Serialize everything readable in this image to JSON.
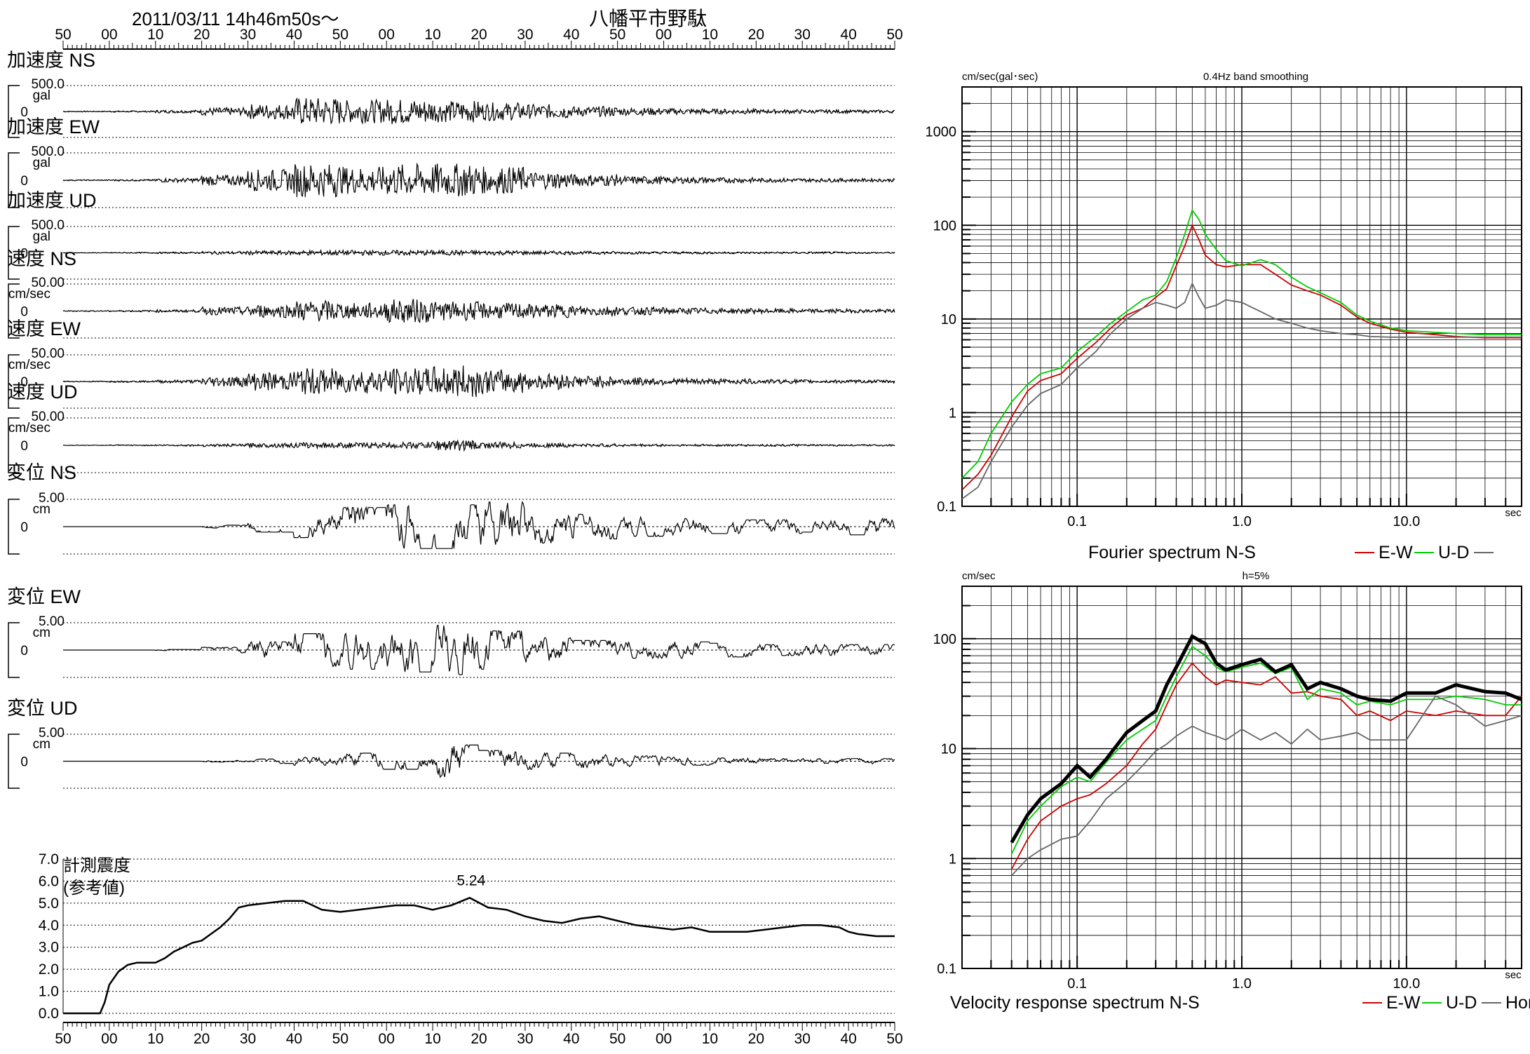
{
  "header": {
    "datetime": "2011/03/11  14h46m50s〜",
    "station": "八幡平市野駄"
  },
  "time_ticks": [
    "50",
    "00",
    "10",
    "20",
    "30",
    "40",
    "50",
    "00",
    "10",
    "20",
    "30",
    "40",
    "50",
    "00",
    "10",
    "20",
    "30",
    "40",
    "50"
  ],
  "chart_data": [
    {
      "type": "line",
      "id": "waveforms",
      "x_ticks": [
        "50",
        "00",
        "10",
        "20",
        "30",
        "40",
        "50",
        "00",
        "10",
        "20",
        "30",
        "40",
        "50",
        "00",
        "10",
        "20",
        "30",
        "40",
        "50"
      ],
      "series": [
        {
          "name": "加速度 NS",
          "label": "加速度 NS",
          "max_label": "500.0",
          "unit": "gal",
          "zero_label": "0",
          "peak_frac": 0.6,
          "envelope": [
            0.02,
            0.03,
            0.06,
            0.15,
            0.3,
            0.55,
            0.45,
            0.5,
            0.42,
            0.35,
            0.28,
            0.2,
            0.15,
            0.12,
            0.1,
            0.08,
            0.07,
            0.06
          ]
        },
        {
          "name": "加速度 EW",
          "label": "加速度 EW",
          "max_label": "500.0",
          "unit": "gal",
          "zero_label": "0",
          "peak_frac": 0.62,
          "envelope": [
            0.02,
            0.03,
            0.08,
            0.2,
            0.4,
            0.62,
            0.5,
            0.6,
            0.62,
            0.5,
            0.32,
            0.22,
            0.15,
            0.12,
            0.1,
            0.08,
            0.07,
            0.06
          ]
        },
        {
          "name": "加速度 UD",
          "label": "加速度 UD",
          "max_label": "500.0",
          "unit": "gal",
          "zero_label": "0",
          "peak_frac": 0.2,
          "envelope": [
            0.01,
            0.02,
            0.03,
            0.06,
            0.08,
            0.1,
            0.1,
            0.1,
            0.1,
            0.09,
            0.07,
            0.06,
            0.05,
            0.05,
            0.04,
            0.04,
            0.04,
            0.03
          ]
        },
        {
          "name": "速度 NS",
          "label": "速度 NS",
          "max_label": "50.00",
          "unit": "cm/sec",
          "zero_label": "0",
          "peak_frac": 0.5,
          "envelope": [
            0.02,
            0.03,
            0.05,
            0.15,
            0.25,
            0.4,
            0.3,
            0.45,
            0.35,
            0.3,
            0.25,
            0.2,
            0.15,
            0.12,
            0.1,
            0.09,
            0.08,
            0.07
          ]
        },
        {
          "name": "速度 EW",
          "label": "速度 EW",
          "max_label": "50.00",
          "unit": "cm/sec",
          "zero_label": "0",
          "peak_frac": 0.6,
          "envelope": [
            0.02,
            0.03,
            0.06,
            0.2,
            0.35,
            0.5,
            0.45,
            0.5,
            0.6,
            0.45,
            0.3,
            0.22,
            0.15,
            0.12,
            0.1,
            0.08,
            0.07,
            0.06
          ]
        },
        {
          "name": "速度 UD",
          "label": "速度 UD",
          "max_label": "50.00",
          "unit": "cm/sec",
          "zero_label": "0",
          "peak_frac": 0.3,
          "envelope": [
            0.01,
            0.02,
            0.03,
            0.05,
            0.08,
            0.1,
            0.1,
            0.12,
            0.2,
            0.12,
            0.08,
            0.06,
            0.05,
            0.04,
            0.04,
            0.04,
            0.03,
            0.03
          ]
        },
        {
          "name": "変位 NS",
          "label": "変位 NS",
          "max_label": "5.00",
          "unit": "cm",
          "zero_label": "0",
          "peak_frac": 1.0,
          "envelope": [
            0.0,
            0.0,
            0.0,
            0.05,
            0.2,
            0.4,
            0.7,
            0.8,
            0.8,
            0.9,
            0.6,
            0.45,
            0.35,
            0.3,
            0.25,
            0.25,
            0.2,
            0.3
          ]
        },
        {
          "name": "変位 EW",
          "label": "変位 EW",
          "max_label": "5.00",
          "unit": "cm",
          "zero_label": "0",
          "peak_frac": 1.0,
          "envelope": [
            0.0,
            0.0,
            0.02,
            0.1,
            0.3,
            0.6,
            0.7,
            0.8,
            0.9,
            0.7,
            0.45,
            0.35,
            0.3,
            0.3,
            0.25,
            0.2,
            0.2,
            0.2
          ]
        },
        {
          "name": "変位 UD",
          "label": "変位 UD",
          "max_label": "5.00",
          "unit": "cm",
          "zero_label": "0",
          "peak_frac": 0.9,
          "envelope": [
            0.0,
            0.0,
            0.0,
            0.03,
            0.08,
            0.15,
            0.3,
            0.3,
            0.6,
            0.4,
            0.3,
            0.25,
            0.2,
            0.15,
            0.12,
            0.1,
            0.1,
            0.1
          ]
        }
      ]
    },
    {
      "type": "line",
      "id": "intensity",
      "title": "計測震度",
      "subtitle": "(参考値)",
      "peak_label": "5.24",
      "y_ticks": [
        "0.0",
        "1.0",
        "2.0",
        "3.0",
        "4.0",
        "5.0",
        "6.0",
        "7.0"
      ],
      "ylim": [
        0,
        7
      ],
      "x_ticks": [
        "50",
        "00",
        "10",
        "20",
        "30",
        "40",
        "50",
        "00",
        "10",
        "20",
        "30",
        "40",
        "50",
        "00",
        "10",
        "20",
        "30",
        "40",
        "50"
      ],
      "x_seconds": [
        0,
        5,
        8,
        9,
        10,
        12,
        14,
        16,
        18,
        20,
        22,
        24,
        26,
        28,
        30,
        32,
        34,
        36,
        38,
        40,
        44,
        48,
        52,
        56,
        60,
        64,
        68,
        72,
        76,
        80,
        84,
        88,
        92,
        96,
        100,
        104,
        108,
        112,
        116,
        120,
        124,
        128,
        132,
        136,
        140,
        144,
        148,
        152,
        156,
        160,
        164,
        168,
        170,
        172,
        176,
        180
      ],
      "values": [
        0.0,
        0.0,
        0.0,
        0.5,
        1.3,
        1.9,
        2.2,
        2.3,
        2.3,
        2.3,
        2.5,
        2.8,
        3.0,
        3.2,
        3.3,
        3.6,
        3.9,
        4.3,
        4.8,
        4.9,
        5.0,
        5.1,
        5.1,
        4.7,
        4.6,
        4.7,
        4.8,
        4.9,
        4.9,
        4.7,
        4.9,
        5.24,
        4.8,
        4.7,
        4.4,
        4.2,
        4.1,
        4.3,
        4.4,
        4.2,
        4.0,
        3.9,
        3.8,
        3.9,
        3.7,
        3.7,
        3.7,
        3.8,
        3.9,
        4.0,
        4.0,
        3.9,
        3.7,
        3.6,
        3.5,
        3.5
      ]
    },
    {
      "type": "line",
      "id": "fourier",
      "title": "0.4Hz band smoothing",
      "ylabel": "cm/sec(gal･sec)",
      "xlabel": "sec",
      "x_scale": "log",
      "y_scale": "log",
      "xlim": [
        0.02,
        50
      ],
      "ylim": [
        0.1,
        3000
      ],
      "x_tick_labels": [
        "0.1",
        "1.0",
        "10.0"
      ],
      "y_tick_labels": [
        "0.1",
        "1",
        "10",
        "100",
        "1000"
      ],
      "legend_text": "Fourier spectrum  N-S",
      "legend_items": [
        {
          "label": "N-S",
          "color": "#cc0000"
        },
        {
          "label": "E-W",
          "color": "#00cc00"
        },
        {
          "label": "U-D",
          "color": "#666666"
        }
      ],
      "series": [
        {
          "name": "N-S",
          "color": "#cc0000",
          "x": [
            0.02,
            0.025,
            0.03,
            0.04,
            0.05,
            0.06,
            0.08,
            0.1,
            0.13,
            0.16,
            0.2,
            0.25,
            0.3,
            0.35,
            0.4,
            0.45,
            0.5,
            0.55,
            0.6,
            0.7,
            0.8,
            1.0,
            1.3,
            1.6,
            2.0,
            2.5,
            3.0,
            4.0,
            5.0,
            6.0,
            8.0,
            10,
            15,
            20,
            30,
            50
          ],
          "y": [
            0.15,
            0.22,
            0.35,
            0.9,
            1.7,
            2.2,
            2.6,
            3.8,
            5.6,
            8.0,
            11.0,
            13.0,
            17.0,
            21.0,
            37.0,
            60.0,
            100.0,
            70.0,
            48.0,
            38.0,
            36.0,
            38.0,
            38.0,
            30.0,
            23.0,
            20.0,
            18.0,
            14.0,
            10.5,
            9.0,
            7.8,
            7.2,
            6.8,
            6.5,
            6.3,
            6.3
          ]
        },
        {
          "name": "E-W",
          "color": "#00cc00",
          "x": [
            0.02,
            0.025,
            0.03,
            0.04,
            0.05,
            0.06,
            0.08,
            0.1,
            0.13,
            0.16,
            0.2,
            0.25,
            0.3,
            0.35,
            0.4,
            0.45,
            0.5,
            0.55,
            0.6,
            0.7,
            0.8,
            1.0,
            1.3,
            1.6,
            2.0,
            2.5,
            3.0,
            4.0,
            5.0,
            6.0,
            8.0,
            10,
            15,
            20,
            30,
            50
          ],
          "y": [
            0.2,
            0.3,
            0.6,
            1.3,
            2.0,
            2.6,
            3.0,
            4.5,
            6.5,
            9.0,
            12.0,
            16.0,
            18.0,
            25.0,
            45.0,
            80.0,
            145.0,
            115.0,
            80.0,
            55.0,
            42.0,
            37.0,
            43.0,
            38.0,
            28.0,
            22.0,
            19.0,
            15.0,
            11.0,
            9.5,
            8.0,
            7.5,
            7.2,
            7.0,
            6.8,
            6.8
          ]
        },
        {
          "name": "U-D",
          "color": "#666666",
          "x": [
            0.02,
            0.025,
            0.03,
            0.04,
            0.05,
            0.06,
            0.08,
            0.1,
            0.13,
            0.16,
            0.2,
            0.25,
            0.3,
            0.35,
            0.4,
            0.45,
            0.5,
            0.55,
            0.6,
            0.7,
            0.8,
            1.0,
            1.3,
            1.6,
            2.0,
            2.5,
            3.0,
            4.0,
            5.0,
            6.0,
            8.0,
            10,
            15,
            20,
            30,
            50
          ],
          "y": [
            0.12,
            0.16,
            0.3,
            0.7,
            1.2,
            1.6,
            2.0,
            3.0,
            4.5,
            7.0,
            10.0,
            13.0,
            15.0,
            14.0,
            13.0,
            15.0,
            24.0,
            17.0,
            13.0,
            14.0,
            16.0,
            15.0,
            12.0,
            10.0,
            9.0,
            8.0,
            7.5,
            7.0,
            6.8,
            6.5,
            6.4,
            6.4,
            6.4,
            6.4,
            6.4,
            6.4
          ]
        }
      ]
    },
    {
      "type": "line",
      "id": "response",
      "title": "h=5%",
      "ylabel": "cm/sec",
      "xlabel": "sec",
      "x_scale": "log",
      "y_scale": "log",
      "xlim": [
        0.02,
        50
      ],
      "ylim": [
        0.1,
        300
      ],
      "x_tick_labels": [
        "0.1",
        "1.0",
        "10.0"
      ],
      "y_tick_labels": [
        "0.1",
        "1",
        "10",
        "100"
      ],
      "legend_text": "Velocity response spectrum N-S",
      "legend_items": [
        {
          "label": "N-S",
          "color": "#cc0000"
        },
        {
          "label": "E-W",
          "color": "#00cc00"
        },
        {
          "label": "U-D",
          "color": "#666666"
        },
        {
          "label": "Horizon",
          "color": "#000000"
        }
      ],
      "series": [
        {
          "name": "N-S",
          "color": "#cc0000",
          "x": [
            0.04,
            0.05,
            0.06,
            0.08,
            0.1,
            0.12,
            0.15,
            0.2,
            0.25,
            0.3,
            0.35,
            0.4,
            0.5,
            0.6,
            0.7,
            0.8,
            1.0,
            1.3,
            1.6,
            2.0,
            2.5,
            3.0,
            4.0,
            5.0,
            6.0,
            8.0,
            10,
            15,
            20,
            30,
            40,
            50
          ],
          "y": [
            0.8,
            1.5,
            2.2,
            3.0,
            3.5,
            3.8,
            4.8,
            7.0,
            11.0,
            15.0,
            25.0,
            38.0,
            60.0,
            45.0,
            38.0,
            42.0,
            40.0,
            38.0,
            45.0,
            32.0,
            33.0,
            30.0,
            28.0,
            20.0,
            22.0,
            18.0,
            22.0,
            20.0,
            22.0,
            20.0,
            20.0,
            30.0
          ]
        },
        {
          "name": "E-W",
          "color": "#00cc00",
          "x": [
            0.04,
            0.05,
            0.06,
            0.08,
            0.1,
            0.12,
            0.15,
            0.2,
            0.25,
            0.3,
            0.35,
            0.4,
            0.5,
            0.6,
            0.7,
            0.8,
            1.0,
            1.3,
            1.6,
            2.0,
            2.5,
            3.0,
            4.0,
            5.0,
            6.0,
            8.0,
            10,
            15,
            20,
            30,
            40,
            50
          ],
          "y": [
            1.1,
            2.2,
            3.0,
            4.5,
            5.5,
            5.0,
            7.5,
            12.0,
            15.0,
            18.0,
            30.0,
            45.0,
            85.0,
            70.0,
            55.0,
            50.0,
            55.0,
            60.0,
            48.0,
            55.0,
            28.0,
            35.0,
            32.0,
            25.0,
            27.0,
            25.0,
            28.0,
            28.0,
            30.0,
            28.0,
            25.0,
            25.0
          ]
        },
        {
          "name": "U-D",
          "color": "#666666",
          "x": [
            0.04,
            0.05,
            0.06,
            0.08,
            0.1,
            0.12,
            0.15,
            0.2,
            0.25,
            0.3,
            0.35,
            0.4,
            0.5,
            0.6,
            0.7,
            0.8,
            1.0,
            1.3,
            1.6,
            2.0,
            2.5,
            3.0,
            4.0,
            5.0,
            6.0,
            8.0,
            10,
            15,
            20,
            30,
            40,
            50
          ],
          "y": [
            0.7,
            1.0,
            1.2,
            1.5,
            1.6,
            2.2,
            3.5,
            5.0,
            7.0,
            9.5,
            11.0,
            13.0,
            16.0,
            14.0,
            13.0,
            12.0,
            15.0,
            12.0,
            14.0,
            11.0,
            15.0,
            12.0,
            13.0,
            14.0,
            12.0,
            12.0,
            12.0,
            30.0,
            25.0,
            16.0,
            18.0,
            20.0
          ]
        },
        {
          "name": "Horizon",
          "color": "#000000",
          "x": [
            0.04,
            0.05,
            0.06,
            0.08,
            0.1,
            0.12,
            0.15,
            0.2,
            0.25,
            0.3,
            0.35,
            0.4,
            0.5,
            0.6,
            0.7,
            0.8,
            1.0,
            1.3,
            1.6,
            2.0,
            2.5,
            3.0,
            4.0,
            5.0,
            6.0,
            8.0,
            10,
            15,
            20,
            30,
            40,
            50
          ],
          "y": [
            1.4,
            2.5,
            3.5,
            4.8,
            7.0,
            5.5,
            8.0,
            14.0,
            18.0,
            22.0,
            38.0,
            55.0,
            105.0,
            90.0,
            60.0,
            52.0,
            58.0,
            65.0,
            50.0,
            58.0,
            35.0,
            40.0,
            35.0,
            30.0,
            28.0,
            27.0,
            32.0,
            32.0,
            38.0,
            33.0,
            32.0,
            28.0
          ]
        }
      ]
    }
  ]
}
